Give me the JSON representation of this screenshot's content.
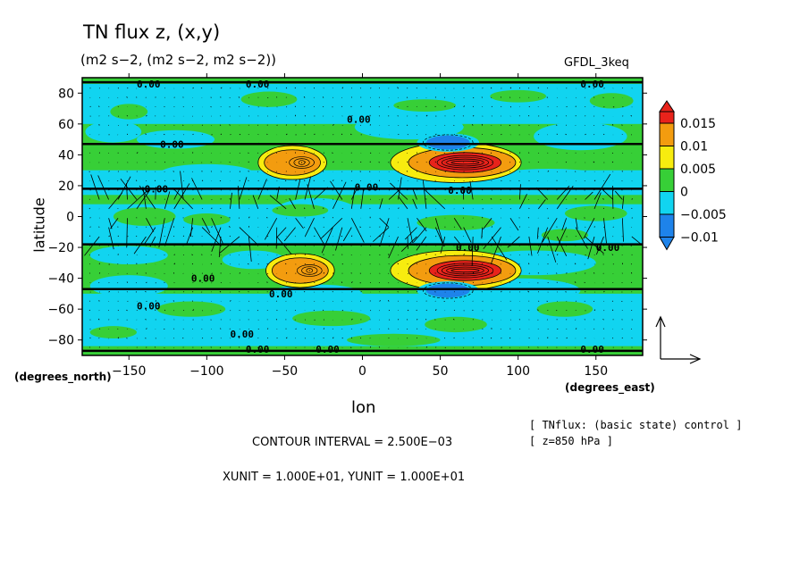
{
  "title": "TN flux z, (x,y)",
  "subtitle": "(m2 s−2, (m2 s−2, m2 s−2))",
  "model": "GFDL_3keq",
  "footer": {
    "contour_interval": "CONTOUR INTERVAL = 2.500E−03",
    "units_line": "XUNIT = 1.000E+01, YUNIT = 1.000E+01",
    "info1": "[ TNflux: (basic state) control ]",
    "info2": "[ z=850 hPa ]"
  },
  "colors": {
    "red": "#e8231b",
    "orange": "#f39c0f",
    "yellow": "#f7ec0f",
    "green": "#37cf37",
    "cyan": "#11d4f0",
    "blue": "#1e83ea"
  },
  "chart_data": {
    "type": "heatmap",
    "subtype": "filled contour map with vector overlay",
    "xlabel": "lon",
    "ylabel": "latitude",
    "xunit_label": "(degrees_east)",
    "yunit_label": "(degrees_north)",
    "xlim": [
      -180,
      180
    ],
    "ylim": [
      -90,
      90
    ],
    "xticks": [
      -150,
      -100,
      -50,
      0,
      50,
      100,
      150
    ],
    "xtick_labels": [
      "−150",
      "−100",
      "−50",
      "0",
      "50",
      "100",
      "150"
    ],
    "yticks": [
      80,
      60,
      40,
      20,
      0,
      -20,
      -40,
      -60,
      -80
    ],
    "ytick_labels": [
      "80",
      "60",
      "40",
      "20",
      "0",
      "−20",
      "−40",
      "−60",
      "−80"
    ],
    "colorbar": {
      "levels": [
        0.015,
        0.01,
        0.005,
        0,
        -0.005,
        -0.01
      ],
      "labels": [
        "0.015",
        "0.01",
        "0.005",
        "0",
        "−0.005",
        "−0.01"
      ],
      "colors": [
        "#e8231b",
        "#f39c0f",
        "#f7ec0f",
        "#37cf37",
        "#11d4f0",
        "#1e83ea"
      ]
    },
    "contour_labels": [
      "0.00"
    ],
    "features": [
      {
        "sign": "positive",
        "lon_center": 60,
        "lat_center": 35,
        "peak": 0.015
      },
      {
        "sign": "positive",
        "lon_center": 60,
        "lat_center": -35,
        "peak": 0.015
      },
      {
        "sign": "positive",
        "lon_center": -40,
        "lat_center": -35,
        "peak": 0.01
      },
      {
        "sign": "positive",
        "lon_center": -45,
        "lat_center": 35,
        "peak": 0.01
      },
      {
        "sign": "negative",
        "lon_center": 55,
        "lat_center": 48,
        "peak": -0.01
      },
      {
        "sign": "negative",
        "lon_center": 55,
        "lat_center": -48,
        "peak": -0.01
      }
    ]
  }
}
